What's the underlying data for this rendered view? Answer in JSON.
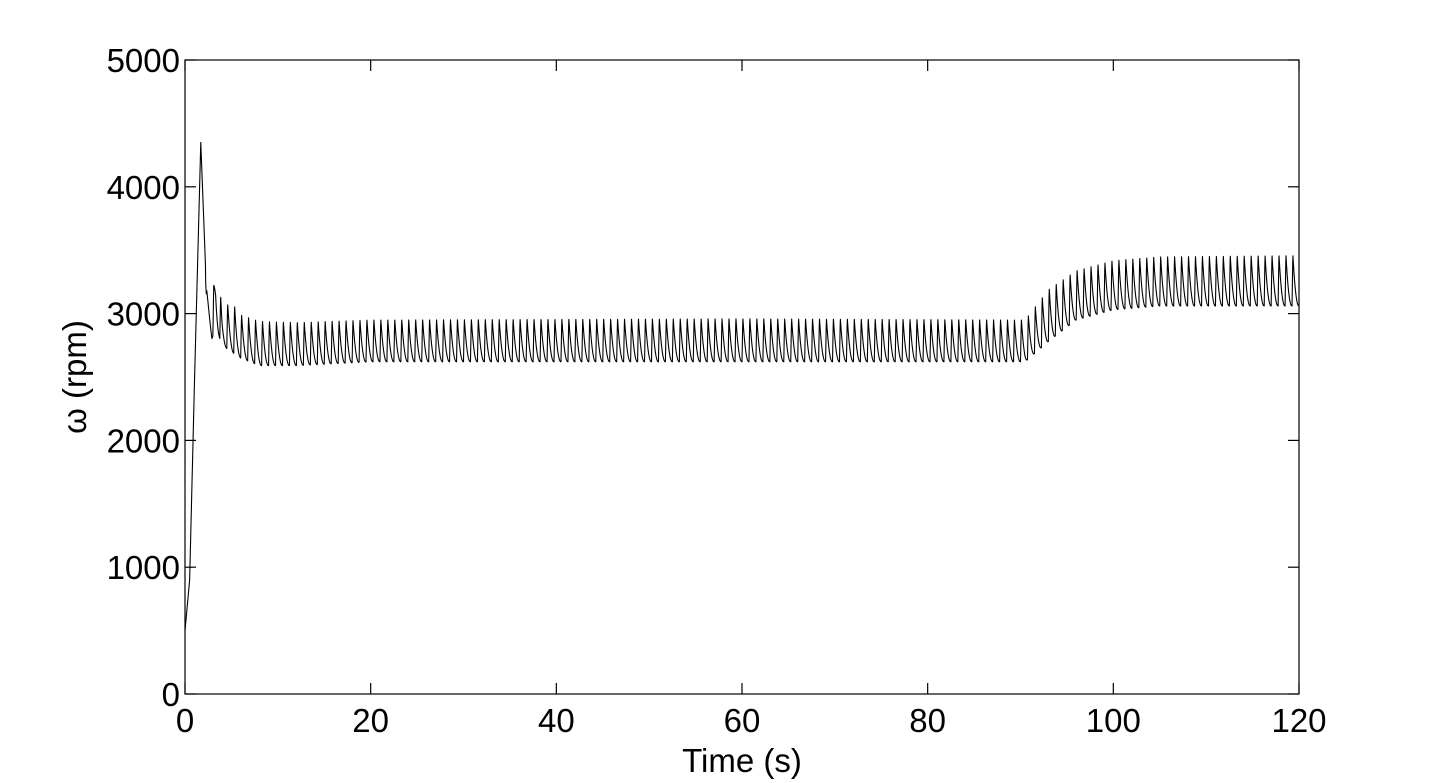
{
  "chart_data": {
    "type": "line",
    "title": "",
    "xlabel": "Time (s)",
    "ylabel": "ω (rpm)",
    "xlim": [
      0,
      120
    ],
    "ylim": [
      0,
      5000
    ],
    "xticks": [
      0,
      20,
      40,
      60,
      80,
      100,
      120
    ],
    "yticks": [
      0,
      1000,
      2000,
      3000,
      4000,
      5000
    ],
    "xtick_labels": [
      "0",
      "20",
      "40",
      "60",
      "80",
      "100",
      "120"
    ],
    "ytick_labels": [
      "0",
      "1000",
      "2000",
      "3000",
      "4000",
      "5000"
    ],
    "grid": false,
    "legend": "none",
    "line_color": "#000000",
    "series": [
      {
        "oscillation_period_s": 0.75,
        "envelope": [
          {
            "x": 0,
            "min": 500,
            "max": 500
          },
          {
            "x": 0.5,
            "min": 900,
            "max": 900
          },
          {
            "x": 1.0,
            "min": 2400,
            "max": 2400
          },
          {
            "x": 1.7,
            "min": 4350,
            "max": 4350
          },
          {
            "x": 2.3,
            "min": 3100,
            "max": 3200
          },
          {
            "x": 2.9,
            "min": 2800,
            "max": 3000
          },
          {
            "x": 3.3,
            "min": 2900,
            "max": 3470
          },
          {
            "x": 4.0,
            "min": 2750,
            "max": 3050
          },
          {
            "x": 5.0,
            "min": 2700,
            "max": 3100
          },
          {
            "x": 6.0,
            "min": 2650,
            "max": 3000
          },
          {
            "x": 8.0,
            "min": 2590,
            "max": 2950
          },
          {
            "x": 12.0,
            "min": 2590,
            "max": 2940
          },
          {
            "x": 20.0,
            "min": 2620,
            "max": 2960
          },
          {
            "x": 60.0,
            "min": 2620,
            "max": 2970
          },
          {
            "x": 90.5,
            "min": 2620,
            "max": 2960
          },
          {
            "x": 93.0,
            "min": 2780,
            "max": 3200
          },
          {
            "x": 96.0,
            "min": 2950,
            "max": 3350
          },
          {
            "x": 100.0,
            "min": 3030,
            "max": 3430
          },
          {
            "x": 105.0,
            "min": 3060,
            "max": 3460
          },
          {
            "x": 120.0,
            "min": 3060,
            "max": 3470
          }
        ]
      }
    ]
  }
}
